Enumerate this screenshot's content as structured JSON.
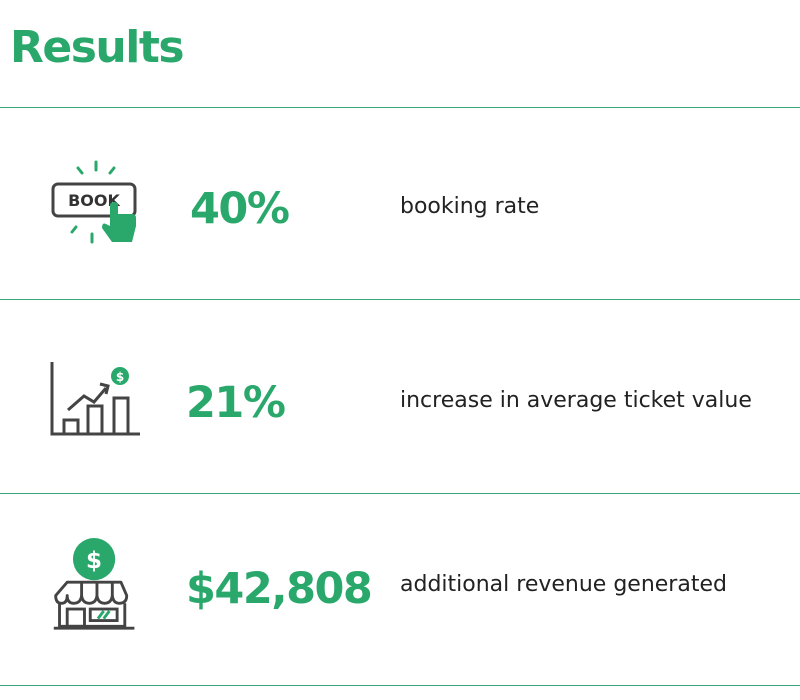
{
  "heading": "Results",
  "accent_color": "#2aa86c",
  "metrics": [
    {
      "icon": "book-button-icon",
      "value": "40%",
      "label": "booking rate"
    },
    {
      "icon": "growth-chart-icon",
      "value": "21%",
      "label": "increase in average ticket value"
    },
    {
      "icon": "storefront-dollar-icon",
      "value": "$42,808",
      "label": "additional revenue generated"
    }
  ],
  "icon_text": {
    "book": "BOOK",
    "dollar": "$"
  }
}
